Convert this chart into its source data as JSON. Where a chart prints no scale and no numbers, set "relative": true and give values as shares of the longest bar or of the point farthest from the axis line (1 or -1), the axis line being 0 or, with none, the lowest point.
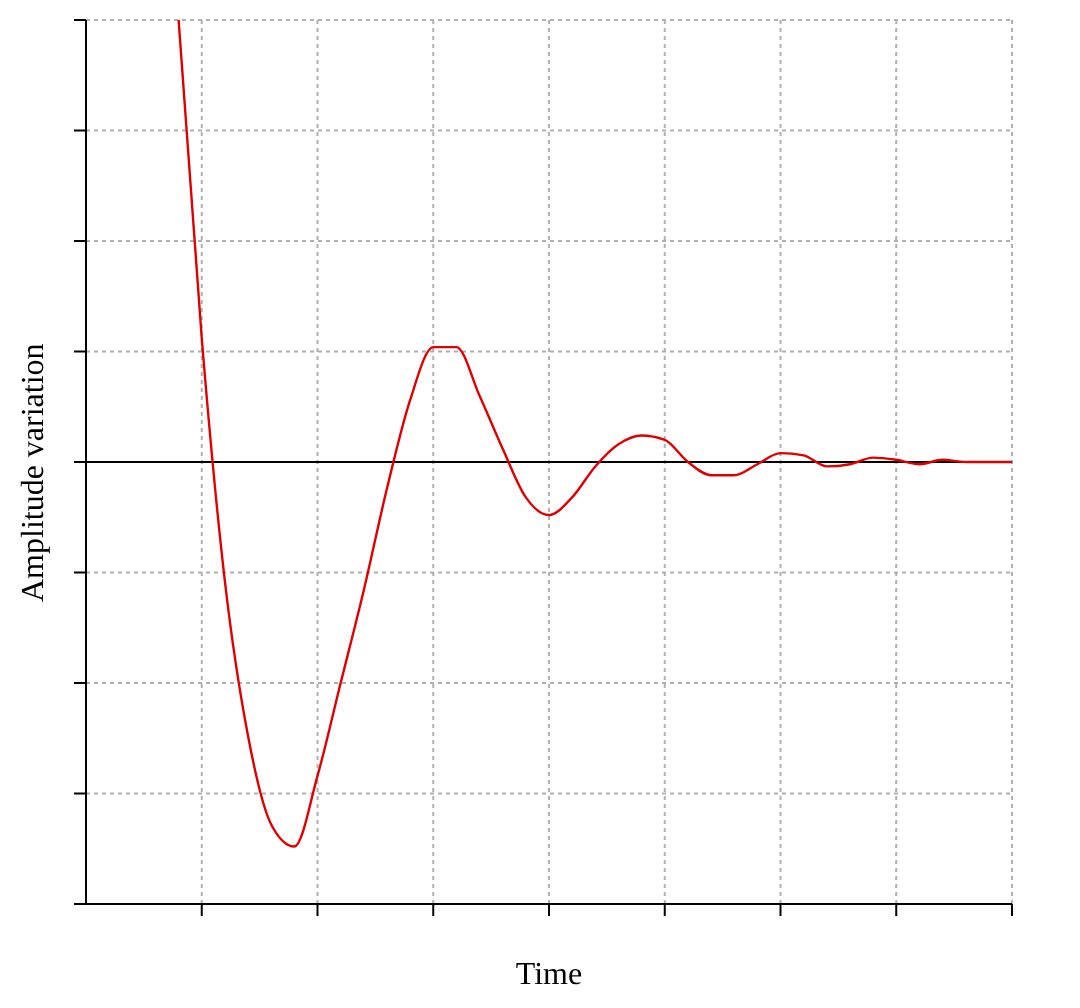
{
  "chart_data": {
    "type": "line",
    "xlabel": "Time",
    "ylabel": "Amplitude variation",
    "relative": true,
    "grid": true,
    "legend": false,
    "marker": "none",
    "line_style": "solid",
    "categories": [
      null,
      null,
      null,
      null,
      null,
      null,
      null,
      null,
      null,
      null,
      null,
      null,
      null,
      null,
      null,
      null,
      null,
      null,
      null,
      null,
      null,
      null,
      null,
      null,
      null,
      null,
      null,
      null,
      null,
      null,
      null,
      null,
      null,
      null,
      null,
      null,
      null,
      null,
      null,
      null,
      null
    ],
    "series": [
      {
        "color": "#e00000",
        "values": [
          null,
          null,
          null,
          null,
          1.0,
          0.28,
          -0.27,
          -0.62,
          -0.82,
          -0.87,
          -0.71,
          -0.5,
          -0.29,
          -0.06,
          0.14,
          0.26,
          0.26,
          0.15,
          0.03,
          -0.08,
          -0.12,
          -0.08,
          -0.01,
          0.04,
          0.06,
          0.05,
          0.0,
          -0.03,
          -0.03,
          -0.005,
          0.02,
          0.015,
          -0.01,
          -0.005,
          0.01,
          0.005,
          -0.005,
          0.005,
          0.0,
          0.0,
          0.0
        ]
      }
    ]
  }
}
